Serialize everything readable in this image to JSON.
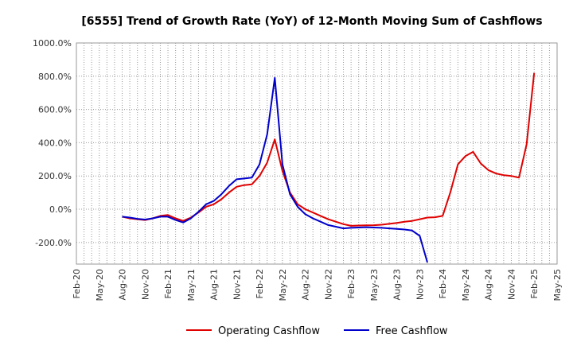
{
  "chart_data": {
    "type": "line",
    "title": "[6555]  Trend of Growth Rate (YoY) of 12-Month Moving Sum of Cashflows",
    "xlabel": "",
    "ylabel": "",
    "ylim": [
      -330,
      1000
    ],
    "y_ticks": [
      1000,
      800,
      600,
      400,
      200,
      0,
      -200
    ],
    "y_tick_labels": [
      "1000.0%",
      "800.0%",
      "600.0%",
      "400.0%",
      "200.0%",
      "0.0%",
      "-200.0%"
    ],
    "x_ticks": [
      "Feb-20",
      "May-20",
      "Aug-20",
      "Nov-20",
      "Feb-21",
      "May-21",
      "Aug-21",
      "Nov-21",
      "Feb-22",
      "May-22",
      "Aug-22",
      "Nov-22",
      "Feb-23",
      "May-23",
      "Aug-23",
      "Nov-23",
      "Feb-24",
      "May-24",
      "Aug-24",
      "Nov-24",
      "Feb-25",
      "May-25"
    ],
    "grid": true,
    "legend_position": "bottom",
    "series": [
      {
        "name": "Operating Cashflow",
        "color": "#e00000",
        "x": [
          "Aug-20",
          "Sep-20",
          "Oct-20",
          "Nov-20",
          "Dec-20",
          "Jan-21",
          "Feb-21",
          "Mar-21",
          "Apr-21",
          "May-21",
          "Jun-21",
          "Jul-21",
          "Aug-21",
          "Sep-21",
          "Oct-21",
          "Nov-21",
          "Dec-21",
          "Jan-22",
          "Feb-22",
          "Mar-22",
          "Apr-22",
          "May-22",
          "Jun-22",
          "Jul-22",
          "Aug-22",
          "Sep-22",
          "Oct-22",
          "Nov-22",
          "Dec-22",
          "Jan-23",
          "Feb-23",
          "Mar-23",
          "Apr-23",
          "May-23",
          "Jun-23",
          "Jul-23",
          "Aug-23",
          "Sep-23",
          "Oct-23",
          "Nov-23",
          "Dec-23",
          "Jan-24",
          "Feb-24",
          "Mar-24",
          "Apr-24",
          "May-24",
          "Jun-24",
          "Jul-24",
          "Aug-24",
          "Sep-24",
          "Oct-24",
          "Nov-24",
          "Dec-24",
          "Jan-25",
          "Feb-25"
        ],
        "values": [
          -45,
          -55,
          -60,
          -65,
          -55,
          -40,
          -35,
          -55,
          -70,
          -50,
          -20,
          15,
          30,
          60,
          100,
          135,
          145,
          150,
          200,
          280,
          420,
          230,
          100,
          30,
          0,
          -20,
          -40,
          -60,
          -75,
          -90,
          -100,
          -98,
          -97,
          -96,
          -93,
          -88,
          -82,
          -75,
          -70,
          -60,
          -50,
          -48,
          -40,
          100,
          270,
          320,
          345,
          275,
          235,
          215,
          205,
          200,
          190,
          390,
          820
        ]
      },
      {
        "name": "Free Cashflow",
        "color": "#0000cc",
        "x": [
          "Aug-20",
          "Sep-20",
          "Oct-20",
          "Nov-20",
          "Dec-20",
          "Jan-21",
          "Feb-21",
          "Mar-21",
          "Apr-21",
          "May-21",
          "Jun-21",
          "Jul-21",
          "Aug-21",
          "Sep-21",
          "Oct-21",
          "Nov-21",
          "Dec-21",
          "Jan-22",
          "Feb-22",
          "Mar-22",
          "Apr-22",
          "May-22",
          "Jun-22",
          "Jul-22",
          "Aug-22",
          "Sep-22",
          "Oct-22",
          "Nov-22",
          "Dec-22",
          "Jan-23",
          "Feb-23",
          "Mar-23",
          "Apr-23",
          "May-23",
          "Jun-23",
          "Jul-23",
          "Aug-23",
          "Sep-23",
          "Oct-23",
          "Nov-23",
          "Dec-23"
        ],
        "values": [
          -45,
          -50,
          -58,
          -62,
          -55,
          -45,
          -45,
          -65,
          -80,
          -55,
          -15,
          30,
          50,
          90,
          140,
          180,
          185,
          190,
          270,
          450,
          790,
          270,
          90,
          15,
          -30,
          -55,
          -75,
          -95,
          -105,
          -115,
          -112,
          -110,
          -108,
          -110,
          -112,
          -115,
          -118,
          -122,
          -128,
          -160,
          -320
        ]
      }
    ]
  }
}
